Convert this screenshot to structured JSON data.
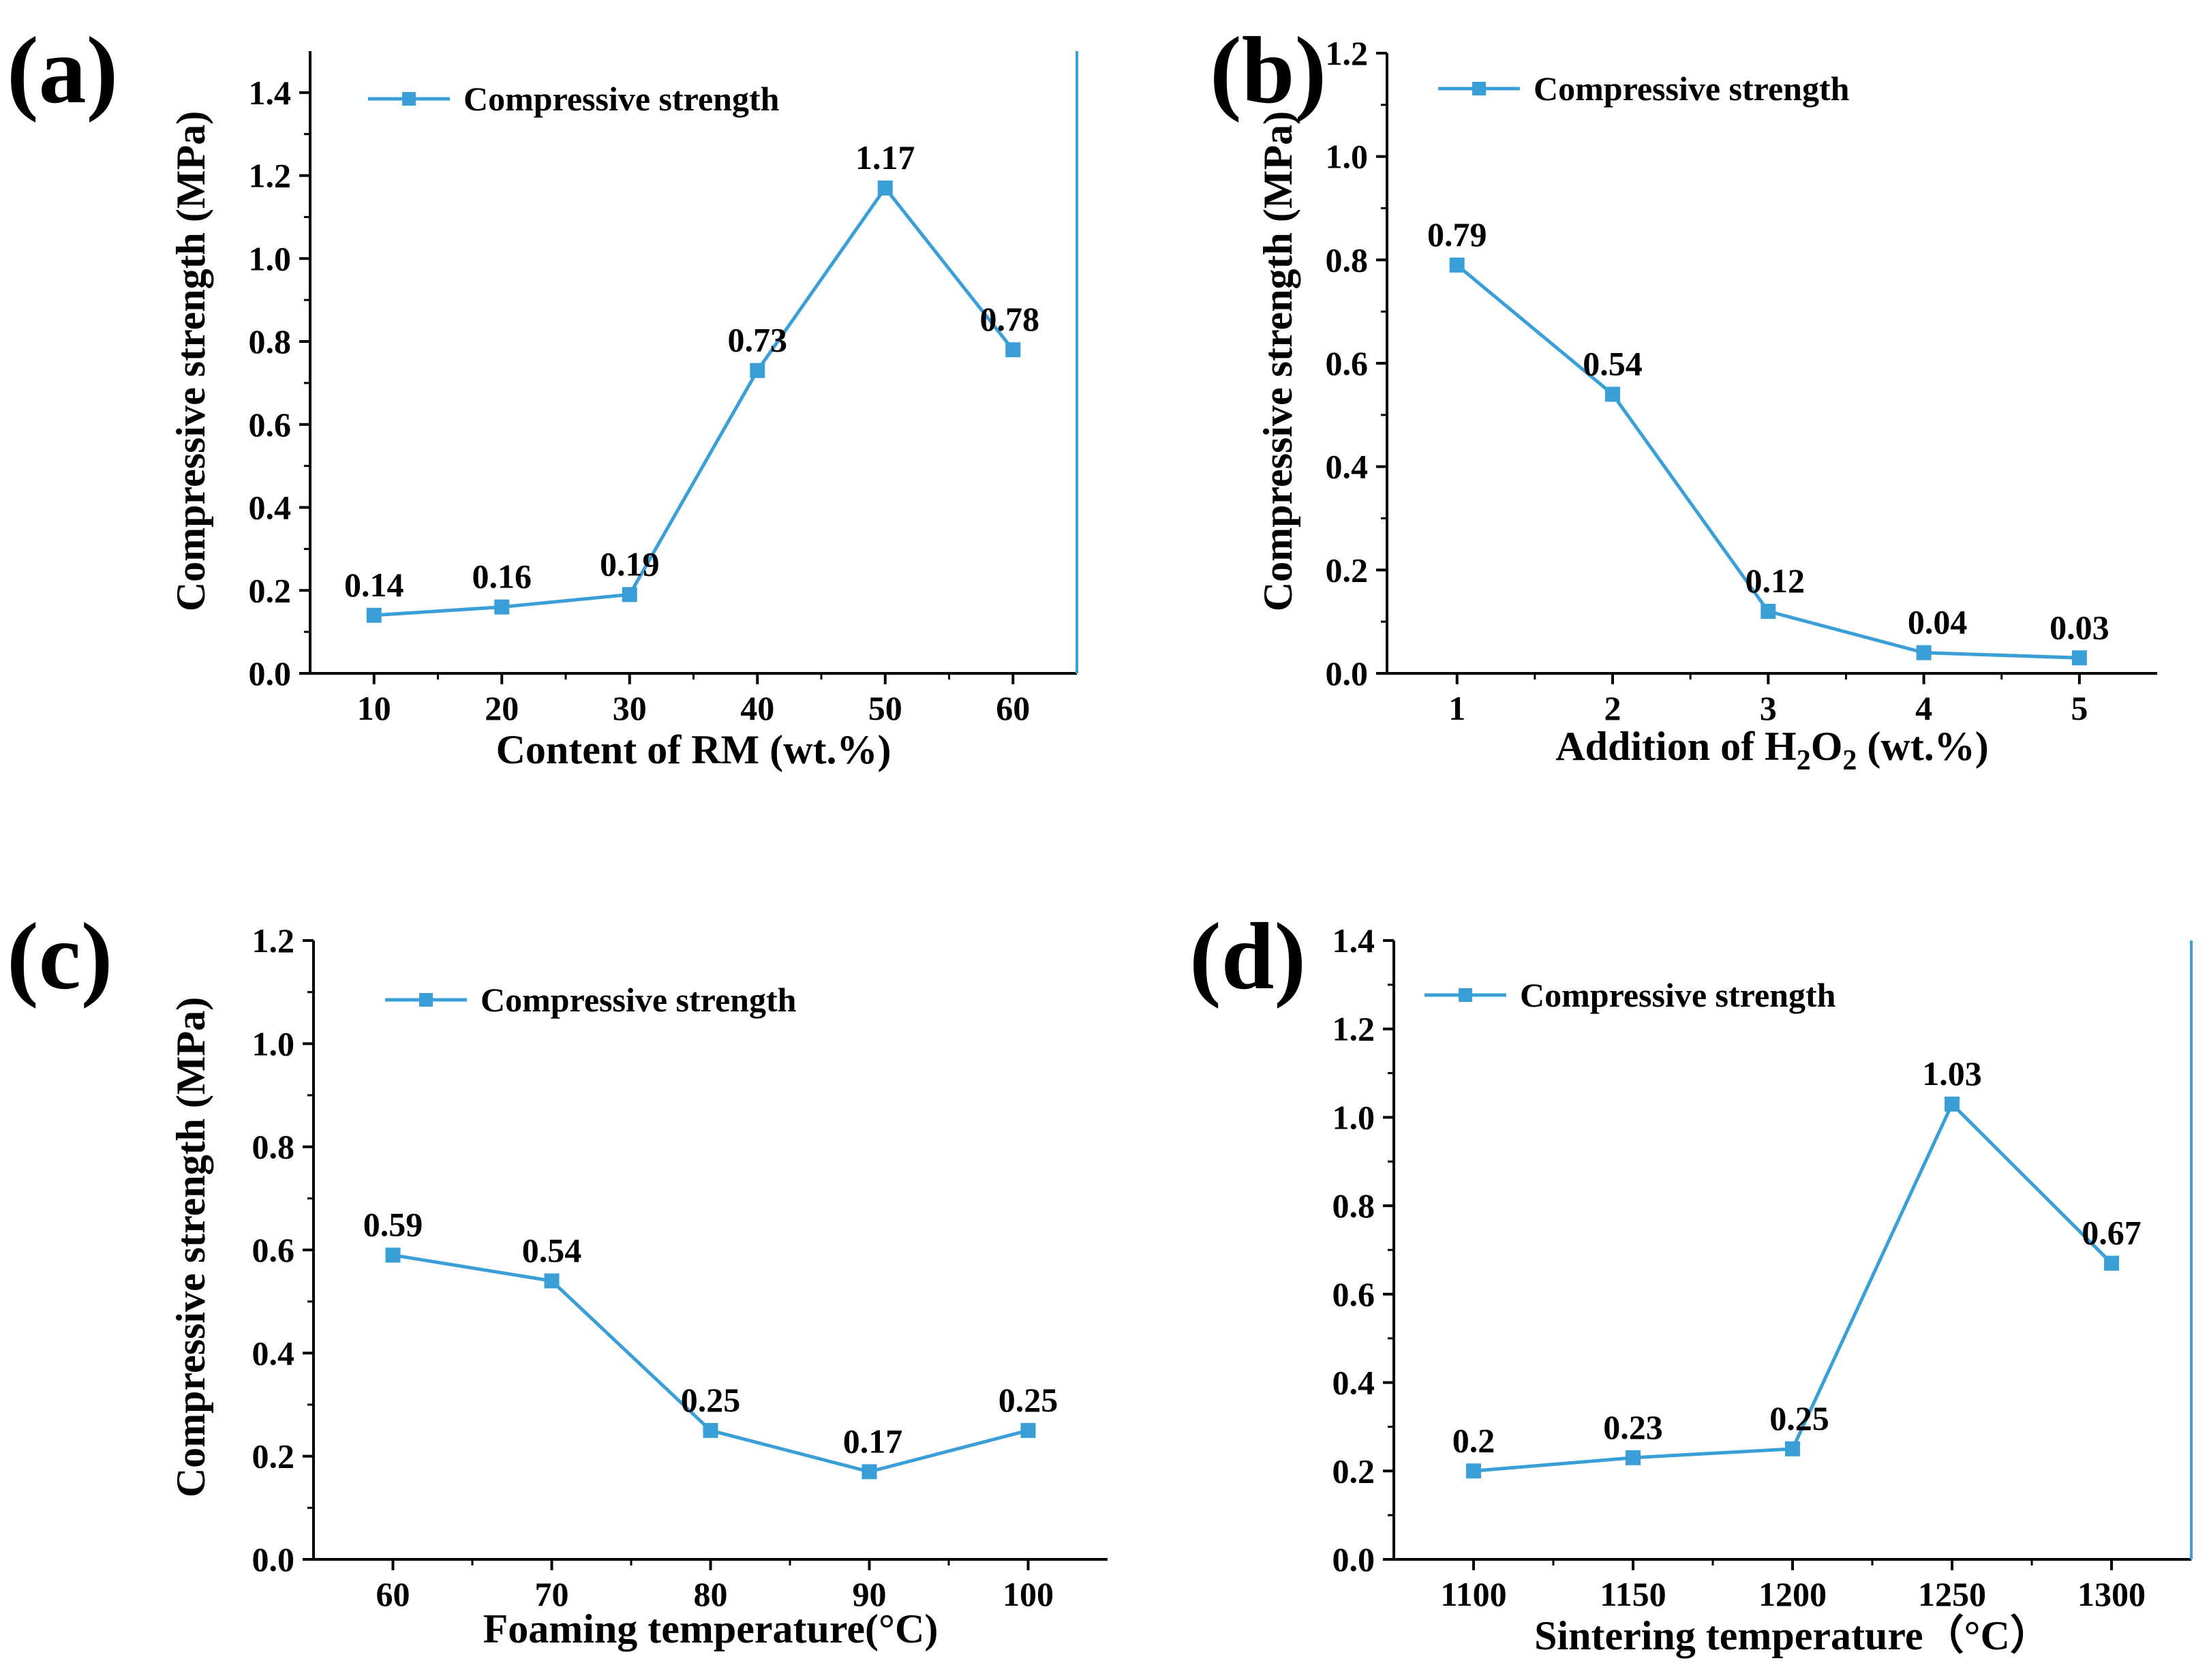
{
  "chart_data": [
    {
      "panel": "(a)",
      "type": "line",
      "x": [
        10,
        20,
        30,
        40,
        50,
        60
      ],
      "y": [
        0.14,
        0.16,
        0.19,
        0.73,
        1.17,
        0.78
      ],
      "labels": [
        "0.14",
        "0.16",
        "0.19",
        "0.73",
        "1.17",
        "0.78"
      ],
      "xticks": [
        "10",
        "20",
        "30",
        "40",
        "50",
        "60"
      ],
      "yticks": [
        "0.0",
        "0.2",
        "0.4",
        "0.6",
        "0.8",
        "1.0",
        "1.2",
        "1.4"
      ],
      "ylim": [
        0,
        1.5
      ],
      "ylabel": "Compressive strength (MPa)",
      "xlabel": "Content of RM (wt.%)",
      "xlabel_parts": [],
      "legend": "Compressive strength",
      "color": "#3a9fd6"
    },
    {
      "panel": "(b)",
      "type": "line",
      "x": [
        1,
        2,
        3,
        4,
        5
      ],
      "y": [
        0.79,
        0.54,
        0.12,
        0.04,
        0.03
      ],
      "labels": [
        "0.79",
        "0.54",
        "0.12",
        "0.04",
        "0.03"
      ],
      "xticks": [
        "1",
        "2",
        "3",
        "4",
        "5"
      ],
      "yticks": [
        "0.0",
        "0.2",
        "0.4",
        "0.6",
        "0.8",
        "1.0",
        "1.2"
      ],
      "ylim": [
        0,
        1.2
      ],
      "ylabel": "Compressive strength (MPa)",
      "xlabel": "",
      "xlabel_parts": [
        {
          "text": "Addition of H",
          "sub": false
        },
        {
          "text": "2",
          "sub": true
        },
        {
          "text": "O",
          "sub": false
        },
        {
          "text": "2",
          "sub": true
        },
        {
          "text": " (wt.%)",
          "sub": false
        }
      ],
      "legend": "Compressive strength",
      "color": "#3a9fd6"
    },
    {
      "panel": "(c)",
      "type": "line",
      "x": [
        60,
        70,
        80,
        90,
        100
      ],
      "y": [
        0.59,
        0.54,
        0.25,
        0.17,
        0.25
      ],
      "labels": [
        "0.59",
        "0.54",
        "0.25",
        "0.17",
        "0.25"
      ],
      "xticks": [
        "60",
        "70",
        "80",
        "90",
        "100"
      ],
      "yticks": [
        "0.0",
        "0.2",
        "0.4",
        "0.6",
        "0.8",
        "1.0",
        "1.2"
      ],
      "ylim": [
        0,
        1.2
      ],
      "ylabel": "Compressive strength (MPa)",
      "xlabel": "Foaming temperature(°C)",
      "xlabel_parts": [],
      "legend": "Compressive strength",
      "color": "#3a9fd6"
    },
    {
      "panel": "(d)",
      "type": "line",
      "x": [
        1100,
        1150,
        1200,
        1250,
        1300
      ],
      "y": [
        0.2,
        0.23,
        0.25,
        1.03,
        0.67
      ],
      "labels": [
        "0.2",
        "0.23",
        "0.25",
        "1.03",
        "0.67"
      ],
      "xticks": [
        "1100",
        "1150",
        "1200",
        "1250",
        "1300"
      ],
      "yticks": [
        "0.0",
        "0.2",
        "0.4",
        "0.6",
        "0.8",
        "1.0",
        "1.2",
        "1.4"
      ],
      "ylim": [
        0,
        1.4
      ],
      "ylabel": "",
      "xlabel": "Sintering temperature（°C）",
      "xlabel_parts": [],
      "legend": "Compressive strength",
      "color": "#3a9fd6"
    }
  ]
}
